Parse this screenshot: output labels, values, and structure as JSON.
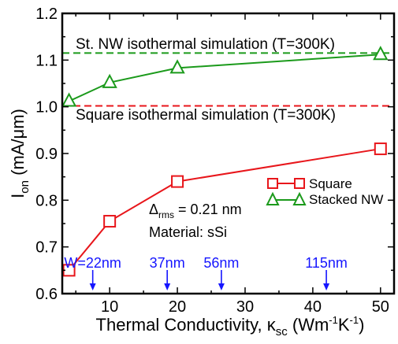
{
  "chart_data": {
    "type": "line",
    "xlim": [
      3,
      52
    ],
    "ylim": [
      0.6,
      1.2
    ],
    "x_ticks": [
      "10",
      "20",
      "30",
      "40",
      "50"
    ],
    "y_ticks": [
      "0.6",
      "0.7",
      "0.8",
      "0.9",
      "1.0",
      "1.1",
      "1.2"
    ],
    "x_title": {
      "main": "Thermal Conductivity, κ",
      "sub": "sc",
      "unit_open": " (Wm",
      "exp1": "-1",
      "unit_mid": "K",
      "exp2": "-1",
      "unit_close": ")"
    },
    "y_title": {
      "main": "I",
      "sub": "on",
      "unit": " (mA/μm)"
    },
    "grid": false,
    "legend_position": "center-right",
    "series": [
      {
        "name": "Square",
        "color": "#e8161b",
        "marker": "square",
        "x": [
          4,
          10,
          20,
          50
        ],
        "y": [
          0.65,
          0.755,
          0.84,
          0.91
        ]
      },
      {
        "name": "Stacked NW",
        "color": "#1b9a1b",
        "marker": "triangle",
        "x": [
          4,
          10,
          20,
          50
        ],
        "y": [
          1.012,
          1.052,
          1.083,
          1.112
        ]
      }
    ],
    "reference_lines": [
      {
        "label": "St. NW isothermal simulation (T=300K)",
        "y": 1.115,
        "color": "#1b9a1b"
      },
      {
        "label": "Square isothermal simulation (T=300K)",
        "y": 1.002,
        "color": "#e8161b"
      }
    ],
    "annotations": {
      "delta_symbol": "Δ",
      "delta_sub": "rms",
      "delta_value": " = 0.21 nm",
      "material": "Material: sSi"
    },
    "width_markers": [
      {
        "label": "W=22nm",
        "x": 7.5
      },
      {
        "label": "37nm",
        "x": 18.5
      },
      {
        "label": "56nm",
        "x": 26.5
      },
      {
        "label": "115nm",
        "x": 42
      }
    ],
    "marker_color": "#1515ff"
  }
}
